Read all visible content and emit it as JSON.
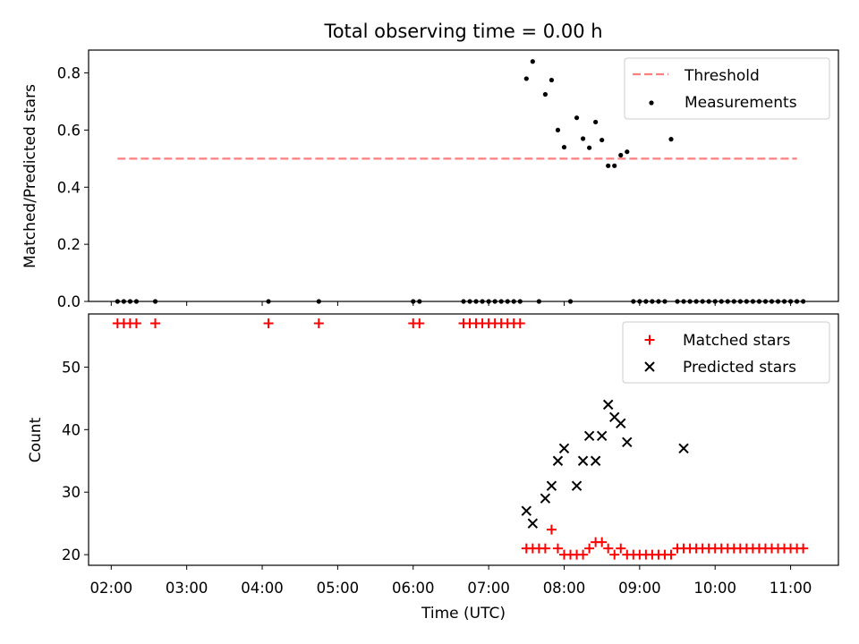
{
  "title": "Total observing time = 0.00 h",
  "chart_data": [
    {
      "type": "scatter",
      "panel": "top",
      "ylabel": "Matched/Predicted stars",
      "ylim": [
        0,
        0.88
      ],
      "yticks": [
        "0.0",
        "0.2",
        "0.4",
        "0.6",
        "0.8"
      ],
      "grid": false,
      "legend_position": "top-right",
      "series": [
        {
          "name": "Threshold",
          "kind": "dashed-line",
          "color": "#ff7f7f",
          "x": [
            "02:05",
            "11:05"
          ],
          "y": [
            0.5,
            0.5
          ]
        },
        {
          "name": "Measurements",
          "kind": "points",
          "color": "#000000",
          "x": [
            "02:05",
            "02:10",
            "02:15",
            "02:20",
            "02:35",
            "04:05",
            "04:45",
            "06:00",
            "06:05",
            "06:40",
            "06:45",
            "06:50",
            "06:55",
            "07:00",
            "07:05",
            "07:10",
            "07:15",
            "07:20",
            "07:25",
            "07:30",
            "07:35",
            "07:40",
            "07:45",
            "07:50",
            "07:55",
            "08:00",
            "08:05",
            "08:10",
            "08:15",
            "08:20",
            "08:25",
            "08:30",
            "08:35",
            "08:40",
            "08:45",
            "08:50",
            "08:55",
            "09:00",
            "09:05",
            "09:10",
            "09:15",
            "09:20",
            "09:25",
            "09:30",
            "09:35",
            "09:40",
            "09:45",
            "09:50",
            "09:55",
            "10:00",
            "10:05",
            "10:10",
            "10:15",
            "10:20",
            "10:25",
            "10:30",
            "10:35",
            "10:40",
            "10:45",
            "10:50",
            "10:55",
            "11:00",
            "11:05",
            "11:10"
          ],
          "y": [
            0,
            0,
            0,
            0,
            0,
            0,
            0,
            0,
            0,
            0,
            0,
            0,
            0,
            0,
            0,
            0,
            0,
            0,
            0,
            0.78,
            0.84,
            0,
            0.725,
            0.775,
            0.6,
            0.54,
            0,
            0.643,
            0.57,
            0.538,
            0.628,
            0.565,
            0.475,
            0.475,
            0.512,
            0.524,
            0,
            0,
            0,
            0,
            0,
            0,
            0.568,
            0,
            0,
            0,
            0,
            0,
            0,
            0,
            0,
            0,
            0,
            0,
            0,
            0,
            0,
            0,
            0,
            0,
            0,
            0,
            0,
            0
          ]
        }
      ]
    },
    {
      "type": "scatter",
      "panel": "bottom",
      "xlabel": "Time (UTC)",
      "ylabel": "Count",
      "ylim": [
        18.3,
        58.5
      ],
      "yticks": [
        "20",
        "30",
        "40",
        "50"
      ],
      "xticks": [
        "02:00",
        "03:00",
        "04:00",
        "05:00",
        "06:00",
        "07:00",
        "08:00",
        "09:00",
        "10:00",
        "11:00"
      ],
      "xlim": [
        "01:42",
        "11:38"
      ],
      "grid": false,
      "legend_position": "top-right",
      "series": [
        {
          "name": "Matched stars",
          "marker": "plus",
          "color": "#ff0000",
          "x": [
            "02:05",
            "02:10",
            "02:15",
            "02:20",
            "02:35",
            "04:05",
            "04:45",
            "06:00",
            "06:05",
            "06:40",
            "06:45",
            "06:50",
            "06:55",
            "07:00",
            "07:05",
            "07:10",
            "07:15",
            "07:20",
            "07:25",
            "07:30",
            "07:35",
            "07:40",
            "07:45",
            "07:50",
            "07:55",
            "08:00",
            "08:05",
            "08:10",
            "08:15",
            "08:20",
            "08:25",
            "08:30",
            "08:35",
            "08:40",
            "08:45",
            "08:50",
            "08:55",
            "09:00",
            "09:05",
            "09:10",
            "09:15",
            "09:20",
            "09:25",
            "09:30",
            "09:35",
            "09:40",
            "09:45",
            "09:50",
            "09:55",
            "10:00",
            "10:05",
            "10:10",
            "10:15",
            "10:20",
            "10:25",
            "10:30",
            "10:35",
            "10:40",
            "10:45",
            "10:50",
            "10:55",
            "11:00",
            "11:05",
            "11:10"
          ],
          "y": [
            57,
            57,
            57,
            57,
            57,
            57,
            57,
            57,
            57,
            57,
            57,
            57,
            57,
            57,
            57,
            57,
            57,
            57,
            57,
            21,
            21,
            21,
            21,
            24,
            21,
            20,
            20,
            20,
            20,
            21,
            22,
            22,
            21,
            20,
            21,
            20,
            20,
            20,
            20,
            20,
            20,
            20,
            20,
            21,
            21,
            21,
            21,
            21,
            21,
            21,
            21,
            21,
            21,
            21,
            21,
            21,
            21,
            21,
            21,
            21,
            21,
            21,
            21,
            21
          ]
        },
        {
          "name": "Predicted stars",
          "marker": "x",
          "color": "#000000",
          "x": [
            "07:30",
            "07:35",
            "07:45",
            "07:50",
            "07:55",
            "08:00",
            "08:10",
            "08:15",
            "08:20",
            "08:25",
            "08:30",
            "08:35",
            "08:40",
            "08:45",
            "08:50",
            "09:35"
          ],
          "y": [
            27,
            25,
            29,
            31,
            35,
            37,
            31,
            35,
            39,
            35,
            39,
            44,
            42,
            41,
            38,
            37
          ]
        }
      ]
    }
  ]
}
